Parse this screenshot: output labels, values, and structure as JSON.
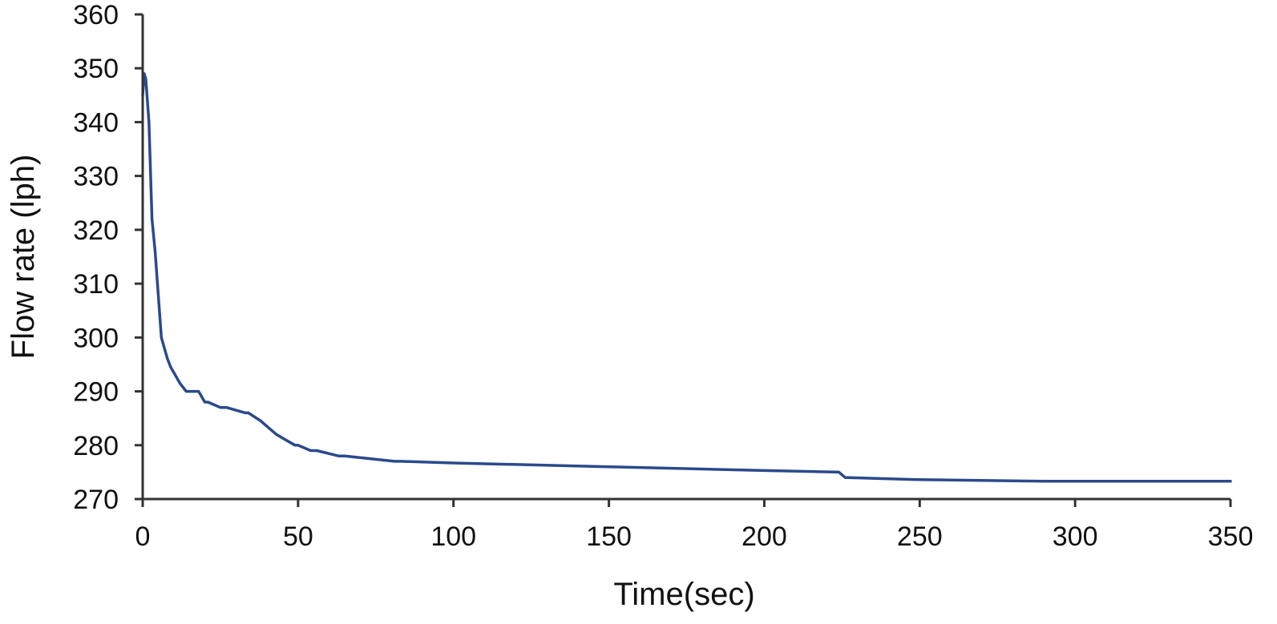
{
  "chart_data": {
    "type": "line",
    "title": "",
    "xlabel": "Time(sec)",
    "ylabel": "Flow rate (lph)",
    "xlim": [
      0,
      350
    ],
    "ylim": [
      270,
      360
    ],
    "x_ticks": [
      0,
      50,
      100,
      150,
      200,
      250,
      300,
      350
    ],
    "y_ticks": [
      270,
      280,
      290,
      300,
      310,
      320,
      330,
      340,
      350,
      360
    ],
    "x_tick_labels": [
      "0",
      "50",
      "100",
      "150",
      "200",
      "250",
      "300",
      "350"
    ],
    "y_tick_labels": [
      "270",
      "280",
      "290",
      "300",
      "310",
      "320",
      "330",
      "340",
      "350",
      "360"
    ],
    "grid": false,
    "legend": "none",
    "colors": {
      "line": "#2a4a8c",
      "axis": "#333333"
    },
    "series": [
      {
        "x": [
          0,
          0.5,
          1,
          2,
          3,
          4,
          5,
          6,
          7,
          8,
          9,
          10,
          12,
          14,
          16,
          18,
          20,
          21,
          25,
          27,
          33,
          34,
          38,
          40,
          43,
          46,
          49,
          50,
          54,
          56,
          63,
          65,
          81,
          83,
          100,
          150,
          200,
          224,
          226,
          250,
          290,
          350
        ],
        "y": [
          345,
          349,
          348,
          340,
          322,
          316,
          308,
          300,
          298,
          296,
          294.5,
          293.5,
          291.5,
          290,
          290,
          290,
          288,
          288,
          287,
          287,
          286,
          286,
          284.5,
          283.5,
          282,
          281,
          280,
          280,
          279,
          279,
          278,
          278,
          277,
          277,
          276.7,
          276,
          275.3,
          275,
          274,
          273.6,
          273.3,
          273.3
        ]
      }
    ]
  }
}
